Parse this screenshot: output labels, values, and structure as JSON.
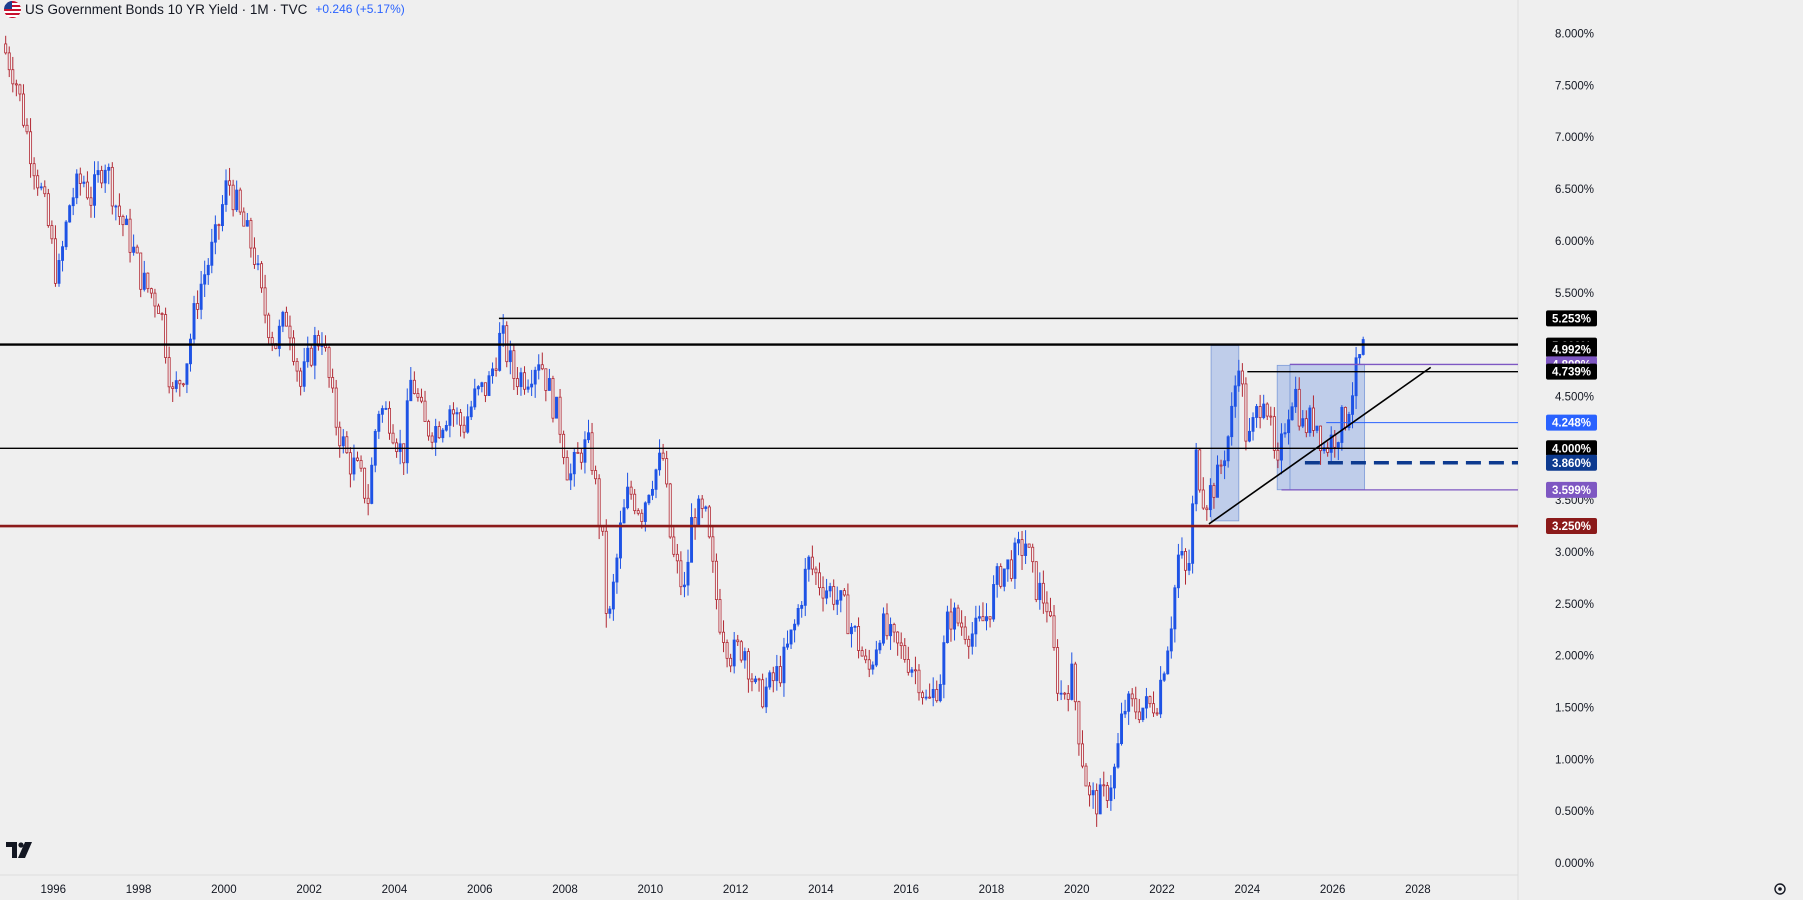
{
  "header": {
    "title": "US Government Bonds 10 YR Yield · 1M · TVC",
    "change": "+0.246 (+5.17%)"
  },
  "colors": {
    "background": "#efefef",
    "up": "#1e53e5",
    "down": "#b22833",
    "level_line": "#000000",
    "support_red": "#8b1a1a",
    "purple": "#7e57c2",
    "blue_label": "#2962ff",
    "navy": "#0d3a8f",
    "box_fill": "#9fb6e6"
  },
  "chart_data": {
    "type": "candlestick",
    "x_axis_ticks": [
      "1996",
      "1998",
      "2000",
      "2002",
      "2004",
      "2006",
      "2008",
      "2010",
      "2012",
      "2014",
      "2016",
      "2018",
      "2020",
      "2022",
      "2024",
      "2026",
      "2028"
    ],
    "y_axis_ticks": [
      "8.000%",
      "7.500%",
      "7.000%",
      "6.500%",
      "6.000%",
      "5.500%",
      "4.500%",
      "3.500%",
      "3.000%",
      "2.500%",
      "2.000%",
      "1.500%",
      "1.000%",
      "0.500%",
      "0.000%"
    ],
    "ylim": [
      0,
      8.15
    ],
    "xlim": [
      1994.75,
      2030.3
    ],
    "path_points": [
      [
        1994.8,
        7.9
      ],
      [
        1995.1,
        7.6
      ],
      [
        1995.4,
        7.0
      ],
      [
        1995.7,
        6.5
      ],
      [
        1995.9,
        6.1
      ],
      [
        1996.1,
        5.6
      ],
      [
        1996.4,
        6.4
      ],
      [
        1996.7,
        6.6
      ],
      [
        1996.9,
        6.4
      ],
      [
        1997.2,
        6.8
      ],
      [
        1997.5,
        6.3
      ],
      [
        1997.8,
        6.0
      ],
      [
        1998.1,
        5.6
      ],
      [
        1998.5,
        5.4
      ],
      [
        1998.8,
        4.5
      ],
      [
        1999.1,
        4.8
      ],
      [
        1999.4,
        5.5
      ],
      [
        1999.8,
        6.0
      ],
      [
        2000.1,
        6.6
      ],
      [
        2000.4,
        6.2
      ],
      [
        2000.7,
        5.9
      ],
      [
        2000.9,
        5.4
      ],
      [
        2001.2,
        5.0
      ],
      [
        2001.5,
        5.3
      ],
      [
        2001.8,
        4.6
      ],
      [
        2002.1,
        5.0
      ],
      [
        2002.3,
        5.1
      ],
      [
        2002.6,
        4.3
      ],
      [
        2002.9,
        3.9
      ],
      [
        2003.1,
        3.8
      ],
      [
        2003.4,
        3.5
      ],
      [
        2003.6,
        4.4
      ],
      [
        2003.9,
        4.3
      ],
      [
        2004.2,
        3.9
      ],
      [
        2004.4,
        4.7
      ],
      [
        2004.7,
        4.2
      ],
      [
        2005.0,
        4.2
      ],
      [
        2005.3,
        4.4
      ],
      [
        2005.6,
        4.2
      ],
      [
        2005.9,
        4.5
      ],
      [
        2006.2,
        4.6
      ],
      [
        2006.5,
        5.1
      ],
      [
        2006.8,
        4.7
      ],
      [
        2007.1,
        4.7
      ],
      [
        2007.4,
        4.9
      ],
      [
        2007.6,
        4.6
      ],
      [
        2007.9,
        4.2
      ],
      [
        2008.1,
        3.7
      ],
      [
        2008.4,
        4.0
      ],
      [
        2008.6,
        4.0
      ],
      [
        2008.9,
        3.0
      ],
      [
        2009.0,
        2.2
      ],
      [
        2009.3,
        3.2
      ],
      [
        2009.5,
        3.6
      ],
      [
        2009.8,
        3.4
      ],
      [
        2010.0,
        3.7
      ],
      [
        2010.3,
        3.9
      ],
      [
        2010.5,
        3.0
      ],
      [
        2010.8,
        2.6
      ],
      [
        2011.0,
        3.4
      ],
      [
        2011.3,
        3.3
      ],
      [
        2011.6,
        2.4
      ],
      [
        2011.9,
        2.0
      ],
      [
        2012.2,
        2.1
      ],
      [
        2012.5,
        1.6
      ],
      [
        2012.8,
        1.7
      ],
      [
        2013.1,
        1.9
      ],
      [
        2013.4,
        2.3
      ],
      [
        2013.7,
        2.9
      ],
      [
        2014.0,
        2.7
      ],
      [
        2014.3,
        2.6
      ],
      [
        2014.6,
        2.4
      ],
      [
        2014.9,
        2.1
      ],
      [
        2015.1,
        1.8
      ],
      [
        2015.4,
        2.3
      ],
      [
        2015.7,
        2.1
      ],
      [
        2016.0,
        2.0
      ],
      [
        2016.3,
        1.8
      ],
      [
        2016.5,
        1.5
      ],
      [
        2016.8,
        1.8
      ],
      [
        2017.0,
        2.4
      ],
      [
        2017.3,
        2.3
      ],
      [
        2017.6,
        2.2
      ],
      [
        2017.9,
        2.4
      ],
      [
        2018.2,
        2.8
      ],
      [
        2018.5,
        2.9
      ],
      [
        2018.8,
        3.1
      ],
      [
        2019.0,
        2.7
      ],
      [
        2019.3,
        2.5
      ],
      [
        2019.6,
        1.6
      ],
      [
        2019.9,
        1.8
      ],
      [
        2020.1,
        1.1
      ],
      [
        2020.3,
        0.6
      ],
      [
        2020.6,
        0.6
      ],
      [
        2020.9,
        0.9
      ],
      [
        2021.1,
        1.5
      ],
      [
        2021.4,
        1.5
      ],
      [
        2021.7,
        1.5
      ],
      [
        2021.9,
        1.6
      ],
      [
        2022.2,
        2.3
      ],
      [
        2022.4,
        3.0
      ],
      [
        2022.6,
        2.7
      ],
      [
        2022.8,
        3.9
      ],
      [
        2023.0,
        3.5
      ],
      [
        2023.3,
        3.7
      ],
      [
        2023.6,
        4.2
      ],
      [
        2023.8,
        4.9
      ],
      [
        2024.0,
        4.0
      ],
      [
        2024.2,
        4.3
      ],
      [
        2024.4,
        4.6
      ],
      [
        2024.6,
        4.0
      ],
      [
        2024.7,
        3.7
      ],
      [
        2024.9,
        4.3
      ],
      [
        2025.1,
        4.6
      ],
      [
        2025.3,
        4.2
      ],
      [
        2025.6,
        4.3
      ],
      [
        2025.8,
        4.0
      ],
      [
        2026.0,
        4.1
      ],
      [
        2026.3,
        4.3
      ],
      [
        2026.6,
        4.8
      ],
      [
        2026.75,
        4.99
      ]
    ],
    "levels": [
      {
        "value": 5.253,
        "label": "5.253%",
        "x_start": 2006.45
      },
      {
        "value": 5.0,
        "label": "5.000%",
        "x_start": 1994.75
      },
      {
        "value": 4.992,
        "label": "4.992%"
      },
      {
        "value": 4.809,
        "label": "4.809%",
        "x_start": 2025.0
      },
      {
        "value": 4.739,
        "label": "4.739%",
        "x_start": 2024.0
      },
      {
        "value": 4.248,
        "label": "4.248%",
        "x_start": 2025.85
      },
      {
        "value": 4.0,
        "label": "4.000%",
        "x_start": 1994.75
      },
      {
        "value": 3.86,
        "label": "3.860%",
        "x_start": 2025.35
      },
      {
        "value": 3.599,
        "label": "3.599%",
        "x_start": 2024.8
      },
      {
        "value": 3.25,
        "label": "3.250%",
        "x_start": 1994.75
      }
    ],
    "trendline": {
      "start": [
        2023.1,
        3.27
      ],
      "end": [
        2028.3,
        4.78
      ]
    },
    "boxes": [
      {
        "x0": 2023.15,
        "x1": 2023.8,
        "y0": 3.3,
        "y1": 4.99
      },
      {
        "x0": 2024.7,
        "x1": 2025.0,
        "y0": 3.6,
        "y1": 4.8
      },
      {
        "x0": 2025.0,
        "x1": 2026.75,
        "y0": 3.6,
        "y1": 4.81
      }
    ]
  }
}
